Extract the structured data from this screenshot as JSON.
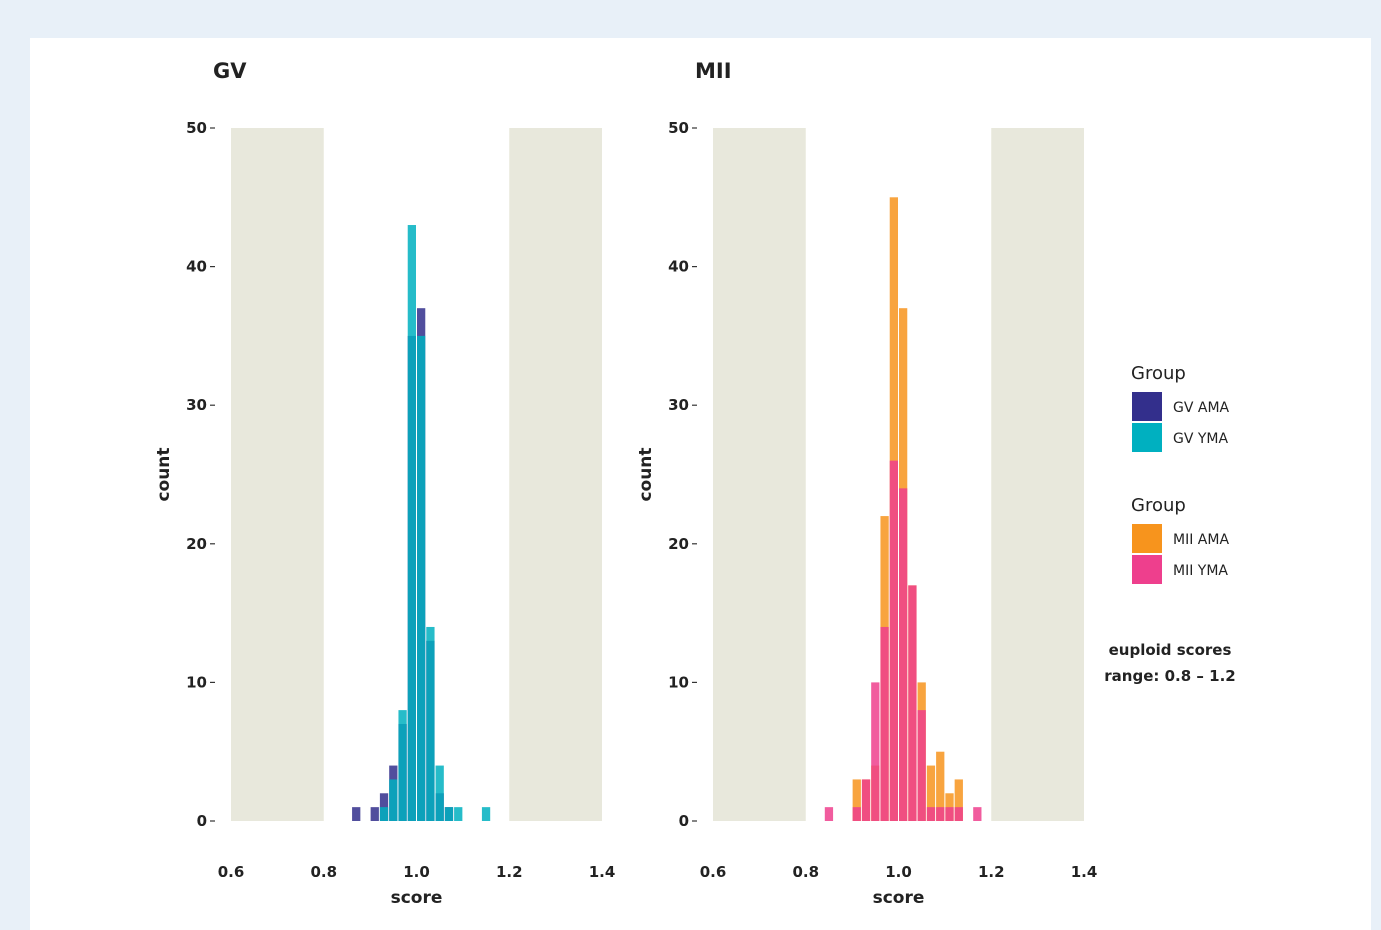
{
  "chart_data": [
    {
      "type": "bar",
      "title": "GV",
      "xlabel": "score",
      "ylabel": "count",
      "xlim": [
        0.6,
        1.4
      ],
      "ylim": [
        0,
        50
      ],
      "xticks": [
        "0.6",
        "0.8",
        "1.0",
        "1.2",
        "1.4"
      ],
      "yticks": [
        "0",
        "10",
        "20",
        "30",
        "40",
        "50"
      ],
      "shaded_ranges": [
        [
          0.6,
          0.8
        ],
        [
          1.2,
          1.4
        ]
      ],
      "bin_width": 0.02,
      "stacked": false,
      "series": [
        {
          "name": "GV AMA",
          "color": "#332f8c",
          "bins": [
            [
              0.87,
              1
            ],
            [
              0.91,
              1
            ],
            [
              0.93,
              2
            ],
            [
              0.95,
              4
            ],
            [
              0.97,
              7
            ],
            [
              0.99,
              35
            ],
            [
              1.01,
              37
            ],
            [
              1.03,
              13
            ],
            [
              1.05,
              2
            ],
            [
              1.07,
              1
            ]
          ]
        },
        {
          "name": "GV YMA",
          "color": "#00b0c0",
          "bins": [
            [
              0.93,
              1
            ],
            [
              0.95,
              3
            ],
            [
              0.97,
              8
            ],
            [
              0.99,
              43
            ],
            [
              1.01,
              35
            ],
            [
              1.03,
              14
            ],
            [
              1.05,
              4
            ],
            [
              1.07,
              1
            ],
            [
              1.09,
              1
            ],
            [
              1.15,
              1
            ]
          ]
        }
      ]
    },
    {
      "type": "bar",
      "title": "MII",
      "xlabel": "score",
      "ylabel": "count",
      "xlim": [
        0.6,
        1.4
      ],
      "ylim": [
        0,
        50
      ],
      "xticks": [
        "0.6",
        "0.8",
        "1.0",
        "1.2",
        "1.4"
      ],
      "yticks": [
        "0",
        "10",
        "20",
        "30",
        "40",
        "50"
      ],
      "shaded_ranges": [
        [
          0.6,
          0.8
        ],
        [
          1.2,
          1.4
        ]
      ],
      "bin_width": 0.02,
      "stacked": false,
      "series": [
        {
          "name": "MII AMA",
          "color": "#f7941d",
          "bins": [
            [
              0.91,
              3
            ],
            [
              0.93,
              3
            ],
            [
              0.95,
              4
            ],
            [
              0.97,
              22
            ],
            [
              0.99,
              45
            ],
            [
              1.01,
              37
            ],
            [
              1.03,
              17
            ],
            [
              1.05,
              10
            ],
            [
              1.07,
              4
            ],
            [
              1.09,
              5
            ],
            [
              1.11,
              2
            ],
            [
              1.13,
              3
            ]
          ]
        },
        {
          "name": "MII YMA",
          "color": "#ee3f8d",
          "bins": [
            [
              0.85,
              1
            ],
            [
              0.91,
              1
            ],
            [
              0.93,
              3
            ],
            [
              0.95,
              10
            ],
            [
              0.97,
              14
            ],
            [
              0.99,
              26
            ],
            [
              1.01,
              24
            ],
            [
              1.03,
              17
            ],
            [
              1.05,
              8
            ],
            [
              1.07,
              1
            ],
            [
              1.09,
              1
            ],
            [
              1.11,
              1
            ],
            [
              1.13,
              1
            ],
            [
              1.17,
              1
            ]
          ]
        }
      ]
    }
  ],
  "legends": [
    {
      "title": "Group",
      "items": [
        {
          "label": "GV AMA",
          "color": "#332f8c"
        },
        {
          "label": "GV YMA",
          "color": "#00b0c0"
        }
      ]
    },
    {
      "title": "Group",
      "items": [
        {
          "label": "MII AMA",
          "color": "#f7941d"
        },
        {
          "label": "MII YMA",
          "color": "#ee3f8d"
        }
      ]
    }
  ],
  "note": {
    "line1": "euploid scores",
    "line2": "range: 0.8  – 1.2"
  },
  "colors": {
    "shade": "#e8e8dc",
    "page_bg": "#e8f0f8",
    "axis_text": "#222222"
  }
}
